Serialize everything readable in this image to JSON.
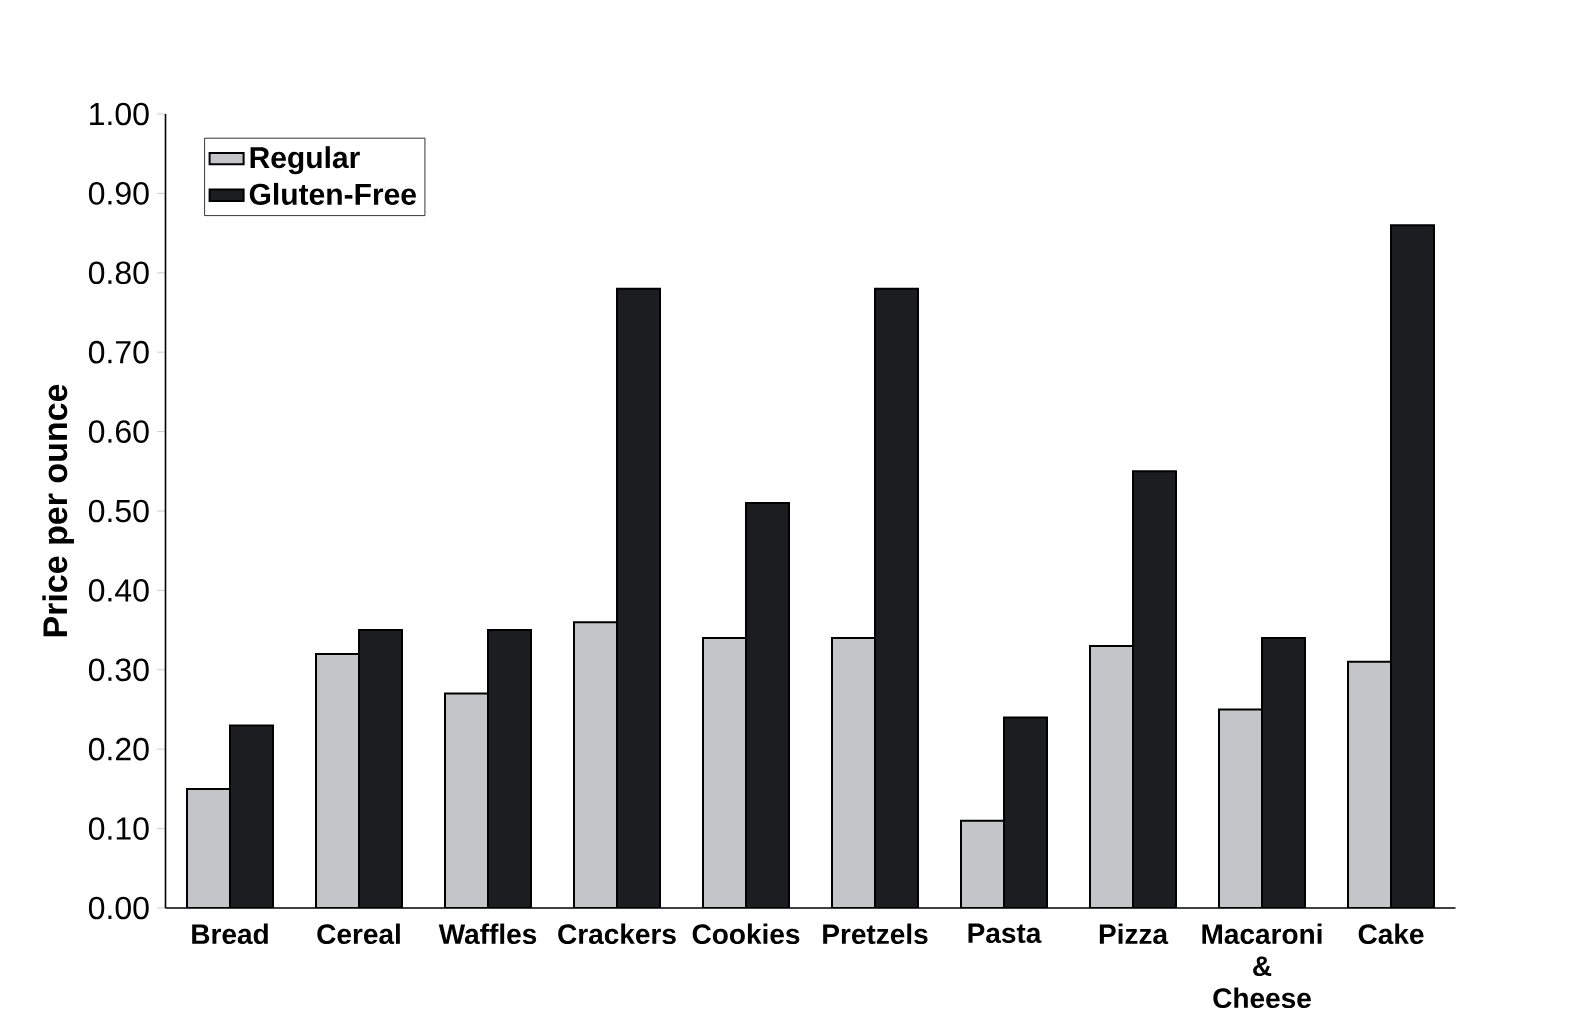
{
  "chart_data": {
    "type": "bar",
    "ylabel": "Price per ounce",
    "categories": [
      "Bread",
      "Cereal",
      "Waffles",
      "Crackers",
      "Cookies",
      "Pretzels",
      "Pasta",
      "Pizza",
      "Macaroni & Cheese",
      "Cake"
    ],
    "series": [
      {
        "name": "Regular",
        "color": "#c4c5c9",
        "values": [
          0.15,
          0.32,
          0.27,
          0.36,
          0.34,
          0.34,
          0.11,
          0.33,
          0.25,
          0.31
        ]
      },
      {
        "name": "Gluten-Free",
        "color": "#1c1d21",
        "values": [
          0.23,
          0.35,
          0.35,
          0.78,
          0.51,
          0.78,
          0.24,
          0.55,
          0.34,
          0.86
        ]
      }
    ],
    "ylim": [
      0,
      1
    ],
    "yticks": [
      {
        "value": 0,
        "label": "0.00"
      },
      {
        "value": 0.1,
        "label": "0.10"
      },
      {
        "value": 0.2,
        "label": "0.20"
      },
      {
        "value": 0.3,
        "label": "0.30"
      },
      {
        "value": 0.4,
        "label": "0.40"
      },
      {
        "value": 0.5,
        "label": "0.50"
      },
      {
        "value": 0.6,
        "label": "0.60"
      },
      {
        "value": 0.7,
        "label": "0.70"
      },
      {
        "value": 0.8,
        "label": "0.80"
      },
      {
        "value": 0.9,
        "label": "0.90"
      },
      {
        "value": 1,
        "label": "1.00"
      }
    ],
    "legend": "top left"
  }
}
